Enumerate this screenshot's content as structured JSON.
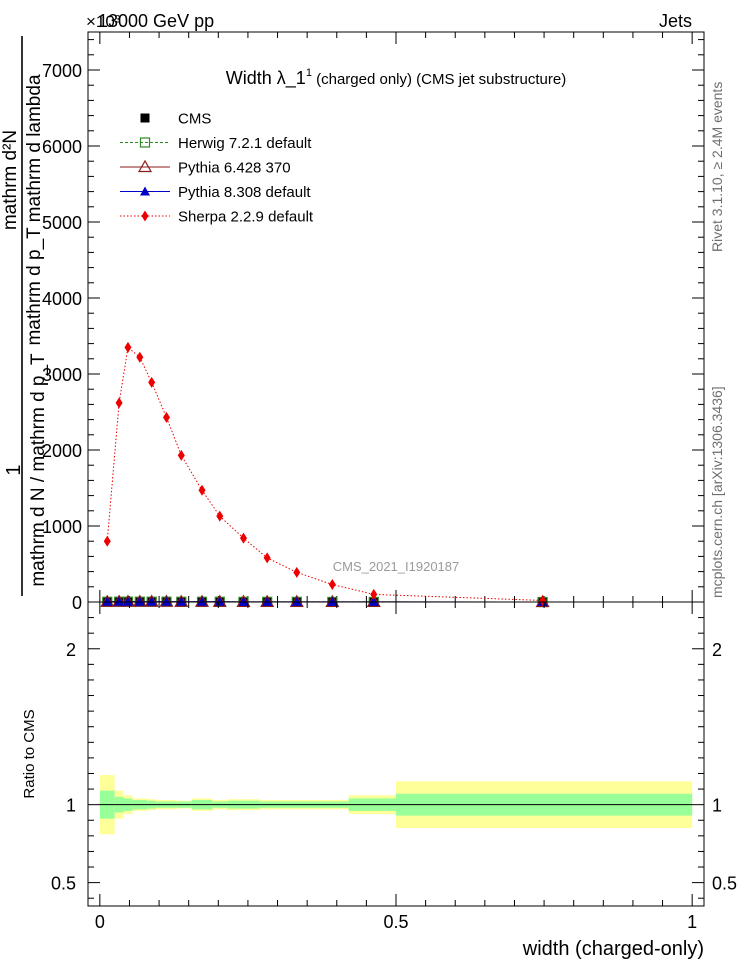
{
  "header": {
    "energy_label": "13000 GeV pp",
    "category": "Jets",
    "exponent_label": "×10³"
  },
  "side_notes": {
    "rivet": "Rivet 3.1.10, ≥ 2.4M events",
    "mcplots": "mcplots.cern.ch [arXiv:1306.3436]"
  },
  "colors": {
    "cms": "#000000",
    "herwig": "#2e8b22",
    "pythia6": "#8b1a1a",
    "pythia8": "#0000c8",
    "sherpa": "#ee0000",
    "band_inner": "#99ff99",
    "band_outer": "#ffff99"
  },
  "chart_data": [
    {
      "type": "scatter",
      "title": "Width λ_1¹ (charged only) (CMS jet substructure)",
      "title_main": "Width λ_1",
      "title_sup": "1",
      "title_rest": " (charged only) (CMS jet substructure)",
      "analysis_label": "CMS_2021_I1920187",
      "ylabel_top": "1",
      "ylabel_numerator": "mathrm d²N",
      "ylabel_numerator_2": "mathrm d p_T mathrm d lambda",
      "ylabel_denominator": "mathrm d N / mathrm d p_T",
      "ylim": [
        0,
        7500
      ],
      "yticks": [
        0,
        1000,
        2000,
        3000,
        4000,
        5000,
        6000,
        7000
      ],
      "ytick_labels": [
        "0",
        "1000",
        "2000",
        "3000",
        "4000",
        "5000",
        "6000",
        "7000"
      ],
      "xlim": [
        -0.02,
        1.02
      ],
      "legend_position": "top-left",
      "x": [
        0.0125,
        0.0325,
        0.0475,
        0.0675,
        0.0875,
        0.1125,
        0.1375,
        0.1725,
        0.2025,
        0.2425,
        0.2825,
        0.3325,
        0.3925,
        0.4625,
        0.7475
      ],
      "series": [
        {
          "name": "CMS",
          "key": "cms",
          "marker": "square-filled",
          "values": [
            3,
            4,
            4,
            4,
            4,
            4,
            3,
            3,
            3,
            2,
            2,
            2,
            1,
            1,
            0
          ]
        },
        {
          "name": "Herwig 7.2.1 default",
          "key": "herwig",
          "marker": "square-open",
          "values": [
            3,
            4,
            4,
            4,
            4,
            4,
            3,
            3,
            3,
            2,
            2,
            2,
            1,
            1,
            0
          ]
        },
        {
          "name": "Pythia 6.428 370",
          "key": "pythia6",
          "marker": "triangle-open",
          "values": [
            3,
            4,
            4,
            4,
            4,
            4,
            3,
            3,
            3,
            2,
            2,
            2,
            1,
            1,
            0
          ]
        },
        {
          "name": "Pythia 8.308 default",
          "key": "pythia8",
          "marker": "triangle-filled",
          "values": [
            3,
            4,
            4,
            4,
            4,
            4,
            3,
            3,
            3,
            2,
            2,
            2,
            1,
            1,
            0
          ]
        },
        {
          "name": "Sherpa 2.2.9 default",
          "key": "sherpa",
          "marker": "diamond-filled",
          "values": [
            800,
            2620,
            3350,
            3220,
            2890,
            2430,
            1930,
            1470,
            1130,
            840,
            580,
            390,
            230,
            100,
            20
          ]
        }
      ]
    },
    {
      "type": "area",
      "ylabel": "Ratio to CMS",
      "xlabel": "width (charged-only)",
      "ylim": [
        0.35,
        2.3
      ],
      "yticks": [
        0.5,
        1,
        2
      ],
      "ytick_labels": [
        "0.5",
        "1",
        "2"
      ],
      "xlim": [
        -0.02,
        1.02
      ],
      "xticks": [
        0,
        0.5,
        1
      ],
      "xtick_labels": [
        "0",
        "0.5",
        "1"
      ],
      "bin_edges": [
        0,
        0.025,
        0.04,
        0.055,
        0.08,
        0.095,
        0.13,
        0.155,
        0.19,
        0.215,
        0.27,
        0.295,
        0.37,
        0.42,
        0.5,
        1.0
      ],
      "inner_band_halfwidth": [
        0.09,
        0.05,
        0.04,
        0.03,
        0.025,
        0.02,
        0.02,
        0.03,
        0.02,
        0.025,
        0.02,
        0.02,
        0.02,
        0.04,
        0.07
      ],
      "outer_band_halfwidth": [
        0.19,
        0.09,
        0.06,
        0.04,
        0.035,
        0.03,
        0.025,
        0.04,
        0.03,
        0.035,
        0.03,
        0.03,
        0.03,
        0.06,
        0.15
      ],
      "reference": 1
    }
  ]
}
